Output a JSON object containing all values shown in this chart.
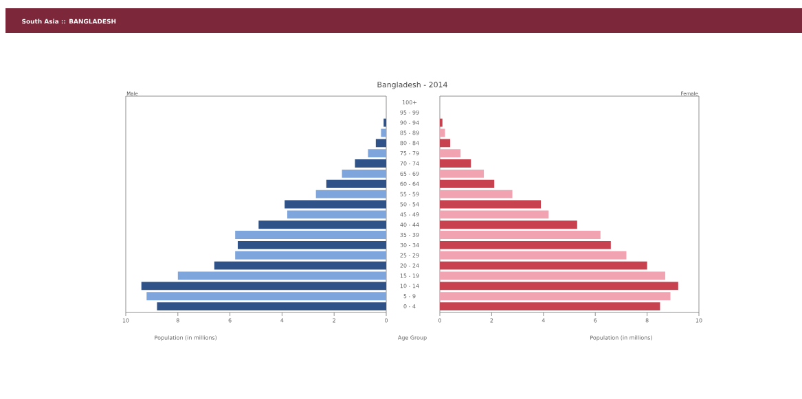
{
  "chart_data": [
    {
      "type": "bar",
      "orientation": "horizontal",
      "title": "Bangladesh - 2014",
      "xlabel": "Population (in millions)",
      "annotations": [
        "South Asia :: BANGLADESH"
      ],
      "categories": [
        "100+",
        "95 - 99",
        "90 - 94",
        "85 - 89",
        "80 - 84",
        "75 - 79",
        "70 - 74",
        "65 - 69",
        "60 - 64",
        "55 - 59",
        "50 - 54",
        "45 - 49",
        "40 - 44",
        "35 - 39",
        "30 - 34",
        "25 - 29",
        "20 - 24",
        "15 - 19",
        "10 - 14",
        "5 - 9",
        "0 - 4"
      ],
      "series": [
        {
          "name": "Male",
          "values": [
            0,
            0,
            0.1,
            0.2,
            0.4,
            0.7,
            1.2,
            1.7,
            2.3,
            2.7,
            3.9,
            3.8,
            4.9,
            5.8,
            5.7,
            5.8,
            6.6,
            8.0,
            9.4,
            9.2,
            8.8
          ],
          "colors": [
            "#2f5289",
            "#7ea6dc",
            "#2f5289",
            "#7ea6dc",
            "#2f5289",
            "#7ea6dc",
            "#2f5289",
            "#7ea6dc",
            "#2f5289",
            "#7ea6dc",
            "#2f5289",
            "#7ea6dc",
            "#2f5289",
            "#7ea6dc",
            "#2f5289",
            "#7ea6dc",
            "#2f5289",
            "#7ea6dc",
            "#2f5289",
            "#7ea6dc",
            "#2f5289"
          ]
        }
      ],
      "xlim": [
        10,
        0
      ],
      "xticks": [
        10,
        8,
        6,
        4,
        2,
        0
      ]
    },
    {
      "type": "bar",
      "orientation": "horizontal",
      "xlabel": "Population (in millions)",
      "ylabel": "Age Group",
      "tick_labels": "x",
      "categories": [
        null,
        null,
        null,
        null,
        null,
        null,
        null,
        null,
        null,
        null,
        null,
        null,
        null,
        null,
        null,
        null,
        null,
        null,
        null,
        null,
        null
      ],
      "series": [
        {
          "name": "Female",
          "values": [
            0,
            0,
            0.1,
            0.2,
            0.4,
            0.8,
            1.2,
            1.7,
            2.1,
            2.8,
            3.9,
            4.2,
            5.3,
            6.2,
            6.6,
            7.2,
            8.0,
            8.7,
            9.2,
            8.9,
            8.5
          ],
          "colors": [
            "#c8414f",
            "#f2a3b1",
            "#c8414f",
            "#f2a3b1",
            "#c8414f",
            "#f2a3b1",
            "#c8414f",
            "#f2a3b1",
            "#c8414f",
            "#f2a3b1",
            "#c8414f",
            "#f2a3b1",
            "#c8414f",
            "#f2a3b1",
            "#c8414f",
            "#f2a3b1",
            "#c8414f",
            "#f2a3b1",
            "#c8414f",
            "#f2a3b1",
            "#c8414f"
          ]
        }
      ],
      "xlim": [
        0,
        10
      ],
      "xticks": [
        0,
        2,
        4,
        6,
        8,
        10
      ]
    }
  ]
}
